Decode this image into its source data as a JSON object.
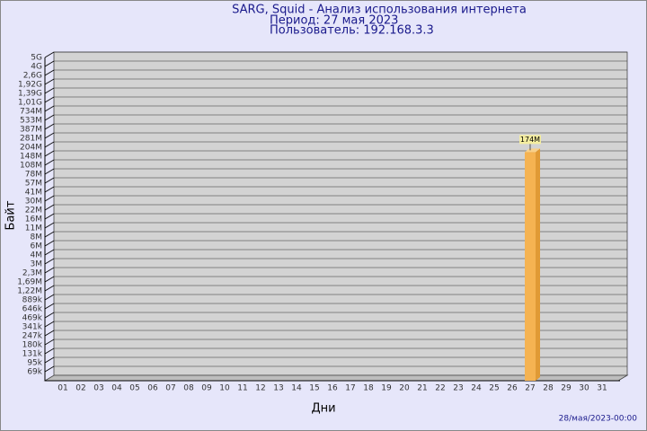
{
  "chart_data": {
    "type": "bar",
    "title": "SARG, Squid - Анализ использования интернета",
    "subtitle": "Период: 27 мая 2023",
    "user": "Пользователь: 192.168.3.3",
    "y_label": "Байт",
    "x_label": "Дни",
    "footer": "28/мая/2023-00:00",
    "categories": [
      "01",
      "02",
      "03",
      "04",
      "05",
      "06",
      "07",
      "08",
      "09",
      "10",
      "11",
      "12",
      "13",
      "14",
      "15",
      "16",
      "17",
      "18",
      "19",
      "20",
      "21",
      "22",
      "23",
      "24",
      "25",
      "26",
      "27",
      "28",
      "29",
      "30",
      "31"
    ],
    "values": [
      null,
      null,
      null,
      null,
      null,
      null,
      null,
      null,
      null,
      null,
      null,
      null,
      null,
      null,
      null,
      null,
      null,
      null,
      null,
      null,
      null,
      null,
      null,
      null,
      null,
      null,
      174000000,
      null,
      null,
      null,
      null
    ],
    "value_labels": [
      null,
      null,
      null,
      null,
      null,
      null,
      null,
      null,
      null,
      null,
      null,
      null,
      null,
      null,
      null,
      null,
      null,
      null,
      null,
      null,
      null,
      null,
      null,
      null,
      null,
      null,
      "174M",
      null,
      null,
      null,
      null
    ],
    "color": "#f5b352",
    "ylim": [
      0,
      5000000000
    ],
    "yticks": [
      {
        "value": 5000000000,
        "label": "5G"
      },
      {
        "value": 4000000000,
        "label": "4G"
      },
      {
        "value": 2600000000,
        "label": "2,6G"
      },
      {
        "value": 1920000000,
        "label": "1,92G"
      },
      {
        "value": 1390000000,
        "label": "1,39G"
      },
      {
        "value": 1010000000,
        "label": "1,01G"
      },
      {
        "value": 734000000,
        "label": "734M"
      },
      {
        "value": 533000000,
        "label": "533M"
      },
      {
        "value": 387000000,
        "label": "387M"
      },
      {
        "value": 281000000,
        "label": "281M"
      },
      {
        "value": 204000000,
        "label": "204M"
      },
      {
        "value": 148000000,
        "label": "148M"
      },
      {
        "value": 108000000,
        "label": "108M"
      },
      {
        "value": 78000000,
        "label": "78M"
      },
      {
        "value": 57000000,
        "label": "57M"
      },
      {
        "value": 41000000,
        "label": "41M"
      },
      {
        "value": 30000000,
        "label": "30M"
      },
      {
        "value": 22000000,
        "label": "22M"
      },
      {
        "value": 16000000,
        "label": "16M"
      },
      {
        "value": 11000000,
        "label": "11M"
      },
      {
        "value": 8000000,
        "label": "8M"
      },
      {
        "value": 6000000,
        "label": "6M"
      },
      {
        "value": 4000000,
        "label": "4M"
      },
      {
        "value": 3000000,
        "label": "3M"
      },
      {
        "value": 2300000,
        "label": "2,3M"
      },
      {
        "value": 1690000,
        "label": "1,69M"
      },
      {
        "value": 1220000,
        "label": "1,22M"
      },
      {
        "value": 889000,
        "label": "889k"
      },
      {
        "value": 646000,
        "label": "646k"
      },
      {
        "value": 469000,
        "label": "469k"
      },
      {
        "value": 341000,
        "label": "341k"
      },
      {
        "value": 247000,
        "label": "247k"
      },
      {
        "value": 180000,
        "label": "180k"
      },
      {
        "value": 131000,
        "label": "131k"
      },
      {
        "value": 95000,
        "label": "95k"
      },
      {
        "value": 69000,
        "label": "69k"
      }
    ],
    "grid": true
  }
}
